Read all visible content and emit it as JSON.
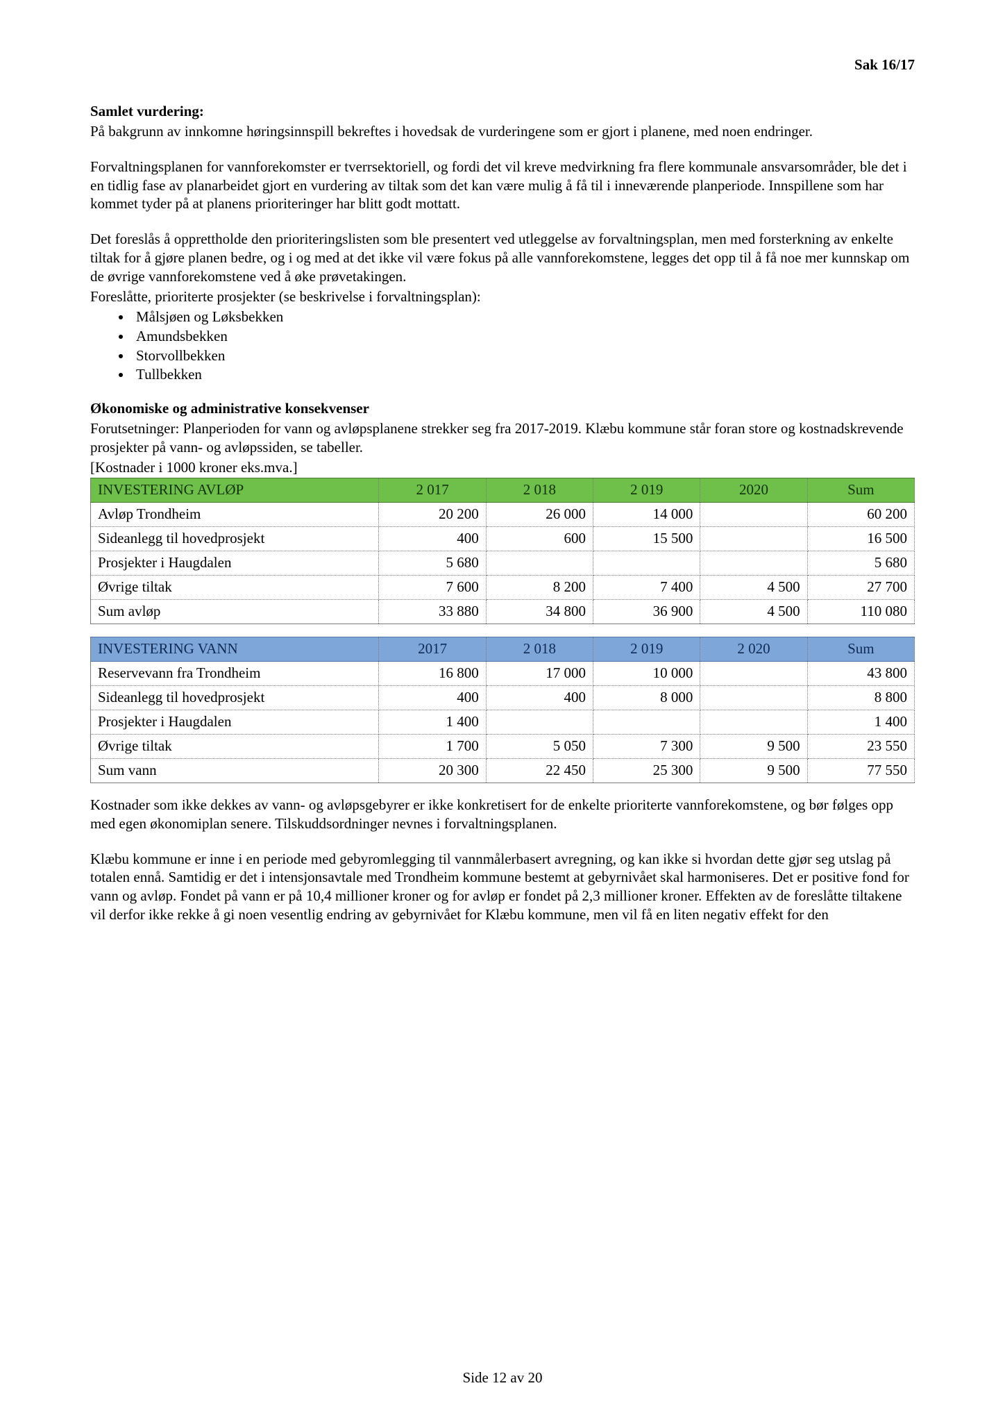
{
  "doc": {
    "header_right": "Sak 16/17",
    "heading1": "Samlet vurdering:",
    "para1": "På bakgrunn av innkomne høringsinnspill bekreftes i hovedsak de vurderingene som er gjort i planene, med noen endringer.",
    "para2": "Forvaltningsplanen for vannforekomster er tverrsektoriell, og fordi det vil kreve medvirkning fra flere kommunale ansvarsområder, ble det i en tidlig fase av planarbeidet gjort en vurdering av tiltak som det kan være mulig å få til i inneværende planperiode. Innspillene som har kommet tyder på at planens prioriteringer har blitt godt mottatt.",
    "para3": "Det foreslås å opprettholde den prioriteringslisten som ble presentert ved utleggelse av forvaltningsplan, men med forsterkning av enkelte tiltak for å gjøre planen bedre, og i og med at det ikke vil være fokus på alle vannforekomstene, legges det opp til å få noe mer kunnskap om de øvrige vannforekomstene ved å øke prøvetakingen.",
    "para3b": "Foreslåtte, prioriterte prosjekter (se beskrivelse i forvaltningsplan):",
    "bullets": [
      "Målsjøen og Løksbekken",
      "Amundsbekken",
      "Storvollbekken",
      "Tullbekken"
    ],
    "heading2": "Økonomiske og administrative konsekvenser",
    "para4": "Forutsetninger: Planperioden for vann og avløpsplanene strekker seg fra 2017-2019. Klæbu kommune står foran store og kostnadskrevende prosjekter på vann- og avløpssiden, se tabeller.",
    "table_note": "[Kostnader i 1000 kroner eks.mva.]",
    "para5": "Kostnader som ikke dekkes av vann- og avløpsgebyrer er ikke konkretisert for de enkelte prioriterte vannforekomstene, og bør følges opp med egen økonomiplan senere. Tilskuddsordninger nevnes i forvaltningsplanen.",
    "para6": "Klæbu kommune er inne i en periode med gebyromlegging til vannmålerbasert avregning, og kan ikke si hvordan dette gjør seg utslag på totalen ennå. Samtidig er det i intensjonsavtale med Trondheim kommune bestemt at gebyrnivået skal harmoniseres. Det er positive fond for vann og avløp. Fondet på vann er på 10,4 millioner kroner og for avløp er fondet på 2,3 millioner kroner. Effekten av de foreslåtte tiltakene vil derfor ikke rekke å gi noen vesentlig endring av gebyrnivået for Klæbu kommune, men vil få en liten negativ effekt for den",
    "footer": "Side 12 av 20"
  },
  "table1": {
    "title": "INVESTERING AVLØP",
    "header_bg": "#6fbf4b",
    "cols": [
      "2 017",
      "2 018",
      "2 019",
      "2020",
      "Sum"
    ],
    "rows": [
      {
        "label": "Avløp Trondheim",
        "cells": [
          "20 200",
          "26 000",
          "14 000",
          "",
          "60 200"
        ]
      },
      {
        "label": "Sideanlegg til hovedprosjekt",
        "cells": [
          "400",
          "600",
          "15 500",
          "",
          "16 500"
        ]
      },
      {
        "label": "Prosjekter i Haugdalen",
        "cells": [
          "5 680",
          "",
          "",
          "",
          "5 680"
        ]
      },
      {
        "label": "Øvrige tiltak",
        "cells": [
          "7 600",
          "8 200",
          "7 400",
          "4 500",
          "27 700"
        ]
      },
      {
        "label": "Sum avløp",
        "cells": [
          "33 880",
          "34 800",
          "36 900",
          "4 500",
          "110 080"
        ]
      }
    ]
  },
  "table2": {
    "title": "INVESTERING VANN",
    "header_bg": "#7ea6d9",
    "cols": [
      "2017",
      "2 018",
      "2 019",
      "2 020",
      "Sum"
    ],
    "rows": [
      {
        "label": "Reservevann fra Trondheim",
        "cells": [
          "16 800",
          "17 000",
          "10 000",
          "",
          "43 800"
        ]
      },
      {
        "label": "Sideanlegg til hovedprosjekt",
        "cells": [
          "400",
          "400",
          "8 000",
          "",
          "8 800"
        ]
      },
      {
        "label": "Prosjekter i Haugdalen",
        "cells": [
          "1 400",
          "",
          "",
          "",
          "1 400"
        ]
      },
      {
        "label": "Øvrige tiltak",
        "cells": [
          "1 700",
          "5 050",
          "7 300",
          "9 500",
          "23 550"
        ]
      },
      {
        "label": "Sum vann",
        "cells": [
          "20 300",
          "22 450",
          "25 300",
          "9 500",
          "77 550"
        ]
      }
    ]
  }
}
